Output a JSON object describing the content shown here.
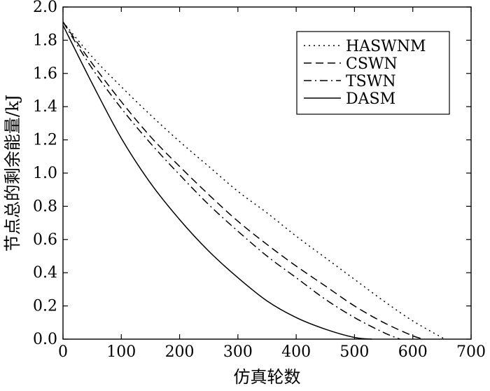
{
  "chart_data": {
    "type": "line",
    "title": "",
    "xlabel": "仿真轮数",
    "ylabel": "节点总的剩余能量/kJ",
    "xlim": [
      0,
      700
    ],
    "ylim": [
      0,
      2.0
    ],
    "xticks": [
      0,
      100,
      200,
      300,
      400,
      500,
      600,
      700
    ],
    "yticks": [
      0.0,
      0.2,
      0.4,
      0.6,
      0.8,
      1.0,
      1.2,
      1.4,
      1.6,
      1.8,
      2.0
    ],
    "xtick_labels": [
      "0",
      "100",
      "200",
      "300",
      "400",
      "500",
      "600",
      "700"
    ],
    "ytick_labels": [
      "0.0",
      "0.2",
      "0.4",
      "0.6",
      "0.8",
      "1.0",
      "1.2",
      "1.4",
      "1.6",
      "1.8",
      "2.0"
    ],
    "grid": false,
    "legend_position": "top-right",
    "series": [
      {
        "name": "HASWNM",
        "style": "dotted",
        "color": "#000000",
        "x": [
          0,
          50,
          100,
          150,
          200,
          250,
          300,
          350,
          400,
          450,
          500,
          550,
          600,
          655
        ],
        "y": [
          1.91,
          1.7,
          1.52,
          1.35,
          1.19,
          1.04,
          0.89,
          0.76,
          0.62,
          0.49,
          0.36,
          0.23,
          0.11,
          0.0
        ]
      },
      {
        "name": "CSWN",
        "style": "dashed",
        "color": "#000000",
        "x": [
          0,
          50,
          100,
          150,
          200,
          250,
          300,
          350,
          400,
          450,
          500,
          550,
          600,
          620
        ],
        "y": [
          1.91,
          1.66,
          1.43,
          1.22,
          1.04,
          0.87,
          0.71,
          0.57,
          0.44,
          0.32,
          0.2,
          0.1,
          0.02,
          0.0
        ]
      },
      {
        "name": "TSWN",
        "style": "dashdot",
        "color": "#000000",
        "x": [
          0,
          50,
          100,
          150,
          200,
          250,
          300,
          350,
          400,
          450,
          500,
          550,
          578
        ],
        "y": [
          1.91,
          1.63,
          1.39,
          1.18,
          0.99,
          0.81,
          0.65,
          0.5,
          0.37,
          0.24,
          0.13,
          0.04,
          0.0
        ]
      },
      {
        "name": "DASM",
        "style": "solid",
        "color": "#000000",
        "x": [
          0,
          50,
          100,
          150,
          200,
          250,
          300,
          350,
          400,
          450,
          500,
          530
        ],
        "y": [
          1.89,
          1.54,
          1.21,
          0.94,
          0.72,
          0.53,
          0.37,
          0.23,
          0.13,
          0.06,
          0.01,
          0.0
        ]
      }
    ]
  }
}
